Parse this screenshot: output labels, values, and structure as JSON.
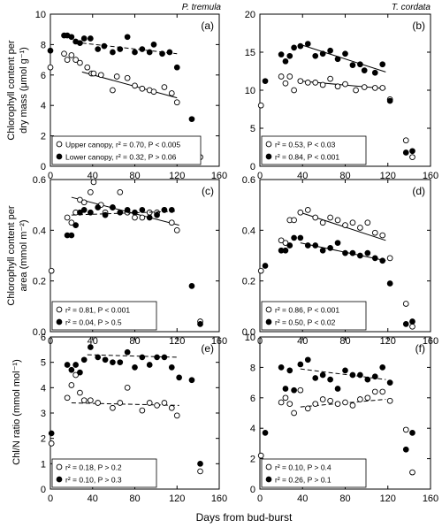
{
  "figure": {
    "xlabel": "Days from bud-burst",
    "row_ylabels": [
      [
        "Chlorophyll content per",
        "dry mass (μmol g⁻¹)"
      ],
      [
        "Chlorophyll content per",
        "area (mmol m⁻²)"
      ],
      [
        "Chl/N ratio (mmol mol⁻¹)"
      ]
    ],
    "column_titles": [
      "P. tremula",
      "T. cordata"
    ],
    "colors": {
      "ink": "#000000",
      "open_fill": "#ffffff",
      "background": "#ffffff"
    }
  },
  "chart_data": [
    {
      "type": "scatter",
      "panel": "(a)",
      "species": "P. tremula",
      "xlim": [
        0,
        160
      ],
      "ylim": [
        0,
        10
      ],
      "xticks": [
        0,
        40,
        80,
        120,
        160
      ],
      "yticks": [
        0,
        2,
        4,
        6,
        8,
        10
      ],
      "legend_position": "bottom-left",
      "series": [
        {
          "name": "Upper canopy",
          "marker": "open",
          "stat": ", r² = 0.70, P < 0.005",
          "x": [
            0,
            13,
            16,
            20,
            24,
            28,
            35,
            39,
            41,
            48,
            59,
            63,
            73,
            80,
            87,
            94,
            98,
            108,
            115,
            120,
            142
          ],
          "y": [
            6.5,
            7.4,
            7.0,
            7.3,
            7.0,
            6.8,
            6.5,
            6.1,
            6.1,
            6.0,
            5.0,
            5.9,
            5.8,
            5.3,
            5.1,
            5.0,
            4.9,
            5.2,
            4.8,
            4.2,
            0.6
          ],
          "trend": {
            "style": "solid",
            "x": [
              30,
              120
            ],
            "y": [
              6.2,
              4.5
            ]
          }
        },
        {
          "name": "Lower canopy",
          "marker": "filled",
          "stat": ", r² = 0.32, P > 0.06",
          "x": [
            0,
            13,
            16,
            20,
            24,
            28,
            32,
            38,
            45,
            51,
            59,
            66,
            73,
            80,
            87,
            94,
            98,
            106,
            113,
            120,
            134
          ],
          "y": [
            7.6,
            8.6,
            8.6,
            8.5,
            8.2,
            8.1,
            8.4,
            8.4,
            7.7,
            7.9,
            7.5,
            7.7,
            8.5,
            7.5,
            7.7,
            7.5,
            8.0,
            7.4,
            7.5,
            6.5,
            3.1
          ],
          "trend": {
            "style": "dashed",
            "x": [
              30,
              120
            ],
            "y": [
              8.1,
              7.4
            ]
          }
        }
      ]
    },
    {
      "type": "scatter",
      "panel": "(b)",
      "species": "T. cordata",
      "xlim": [
        0,
        160
      ],
      "ylim": [
        0,
        20
      ],
      "xticks": [
        0,
        40,
        80,
        120,
        160
      ],
      "yticks": [
        0,
        5,
        10,
        15,
        20
      ],
      "legend_position": "bottom-left",
      "series": [
        {
          "name": "",
          "marker": "open",
          "stat": "r² = 0.53, P < 0.03",
          "x": [
            1,
            20,
            24,
            28,
            32,
            38,
            45,
            52,
            59,
            66,
            73,
            80,
            90,
            98,
            108,
            115,
            122,
            137,
            143
          ],
          "y": [
            8.0,
            11.8,
            10.9,
            11.8,
            10.0,
            11.2,
            11.0,
            11.0,
            10.7,
            11.5,
            10.5,
            10.8,
            10.0,
            10.4,
            10.3,
            10.3,
            8.8,
            3.4,
            1.2
          ],
          "trend": {
            "style": "solid",
            "x": [
              38,
              118
            ],
            "y": [
              11.2,
              10.2
            ]
          }
        },
        {
          "name": "",
          "marker": "filled",
          "stat": "r² = 0.84, P < 0.001",
          "x": [
            5,
            20,
            24,
            28,
            32,
            38,
            45,
            52,
            59,
            66,
            73,
            80,
            87,
            94,
            98,
            108,
            115,
            122,
            137,
            143
          ],
          "y": [
            11.2,
            14.7,
            13.8,
            14.5,
            15.6,
            15.8,
            16.1,
            14.5,
            14.8,
            15.2,
            14.1,
            14.8,
            13.3,
            13.4,
            12.6,
            12.3,
            13.4,
            8.6,
            1.8,
            2.0
          ],
          "trend": {
            "style": "solid",
            "x": [
              38,
              118
            ],
            "y": [
              16.0,
              12.4
            ]
          }
        }
      ]
    },
    {
      "type": "scatter",
      "panel": "(c)",
      "species": "P. tremula",
      "xlim": [
        0,
        160
      ],
      "ylim": [
        0,
        0.6
      ],
      "xticks": [
        0,
        40,
        80,
        120,
        160
      ],
      "yticks": [
        0.0,
        0.2,
        0.4,
        0.6
      ],
      "legend_position": "bottom-left",
      "series": [
        {
          "name": "",
          "marker": "open",
          "stat": "r² = 0.81, P < 0.001",
          "x": [
            1,
            16,
            20,
            24,
            28,
            32,
            38,
            41,
            48,
            52,
            59,
            66,
            73,
            80,
            87,
            94,
            101,
            108,
            115,
            120,
            142
          ],
          "y": [
            0.24,
            0.45,
            0.43,
            0.47,
            0.52,
            0.51,
            0.55,
            0.59,
            0.5,
            0.47,
            0.49,
            0.55,
            0.47,
            0.45,
            0.45,
            0.47,
            0.47,
            0.48,
            0.43,
            0.4,
            0.04
          ],
          "trend": {
            "style": "solid",
            "x": [
              20,
              122
            ],
            "y": [
              0.53,
              0.42
            ]
          }
        },
        {
          "name": "",
          "marker": "filled",
          "stat": "r² = 0.04, P > 0.5",
          "x": [
            16,
            20,
            24,
            28,
            32,
            38,
            45,
            52,
            59,
            66,
            73,
            80,
            87,
            94,
            101,
            108,
            115,
            134,
            142
          ],
          "y": [
            0.38,
            0.38,
            0.42,
            0.47,
            0.48,
            0.47,
            0.49,
            0.46,
            0.49,
            0.47,
            0.48,
            0.47,
            0.48,
            0.45,
            0.46,
            0.48,
            0.48,
            0.18,
            0.03
          ],
          "trend": {
            "style": "dashed",
            "x": [
              20,
              120
            ],
            "y": [
              0.46,
              0.475
            ]
          }
        }
      ]
    },
    {
      "type": "scatter",
      "panel": "(d)",
      "species": "T. cordata",
      "xlim": [
        0,
        160
      ],
      "ylim": [
        0,
        0.6
      ],
      "xticks": [
        0,
        40,
        80,
        120,
        160
      ],
      "yticks": [
        0.0,
        0.2,
        0.4,
        0.6
      ],
      "legend_position": "bottom-left",
      "series": [
        {
          "name": "",
          "marker": "open",
          "stat": "r² = 0.86, P < 0.001",
          "x": [
            1,
            20,
            24,
            28,
            32,
            38,
            45,
            52,
            59,
            66,
            73,
            80,
            87,
            94,
            101,
            108,
            115,
            122,
            137,
            143
          ],
          "y": [
            0.24,
            0.36,
            0.35,
            0.44,
            0.44,
            0.47,
            0.48,
            0.45,
            0.43,
            0.45,
            0.44,
            0.42,
            0.43,
            0.41,
            0.43,
            0.39,
            0.38,
            0.29,
            0.11,
            0.02
          ],
          "trend": {
            "style": "solid",
            "x": [
              38,
              118
            ],
            "y": [
              0.47,
              0.36
            ]
          }
        },
        {
          "name": "",
          "marker": "filled",
          "stat": "r² = 0.50, P < 0.02",
          "x": [
            5,
            20,
            24,
            28,
            32,
            38,
            45,
            52,
            59,
            66,
            73,
            80,
            87,
            94,
            101,
            108,
            115,
            122,
            137,
            143
          ],
          "y": [
            0.26,
            0.32,
            0.32,
            0.34,
            0.37,
            0.37,
            0.34,
            0.34,
            0.32,
            0.33,
            0.35,
            0.31,
            0.31,
            0.3,
            0.31,
            0.29,
            0.28,
            0.19,
            0.03,
            0.04
          ],
          "trend": {
            "style": "solid",
            "x": [
              38,
              118
            ],
            "y": [
              0.35,
              0.28
            ]
          }
        }
      ]
    },
    {
      "type": "scatter",
      "panel": "(e)",
      "species": "P. tremula",
      "xlim": [
        0,
        160
      ],
      "ylim": [
        0,
        6
      ],
      "xticks": [
        0,
        40,
        80,
        120,
        160
      ],
      "yticks": [
        0,
        1,
        2,
        3,
        4,
        5,
        6
      ],
      "legend_position": "bottom-left",
      "series": [
        {
          "name": "",
          "marker": "open",
          "stat": "r² = 0.18, P > 0.2",
          "x": [
            1,
            16,
            20,
            24,
            28,
            32,
            38,
            45,
            59,
            66,
            73,
            87,
            94,
            101,
            108,
            115,
            120,
            142
          ],
          "y": [
            1.8,
            3.6,
            4.1,
            4.5,
            3.8,
            3.5,
            3.5,
            3.4,
            3.2,
            3.4,
            4.0,
            3.1,
            3.4,
            3.3,
            3.4,
            3.2,
            2.9,
            0.7
          ],
          "trend": {
            "style": "dashed",
            "x": [
              20,
              122
            ],
            "y": [
              3.4,
              3.3
            ]
          }
        },
        {
          "name": "",
          "marker": "filled",
          "stat": "r² = 0.10, P > 0.3",
          "x": [
            1,
            16,
            20,
            24,
            28,
            32,
            38,
            45,
            52,
            59,
            66,
            73,
            80,
            87,
            94,
            101,
            108,
            115,
            122,
            134,
            142
          ],
          "y": [
            2.2,
            4.9,
            4.7,
            4.9,
            4.6,
            5.1,
            5.6,
            5.2,
            5.1,
            5.0,
            5.0,
            5.4,
            4.8,
            5.2,
            4.9,
            5.2,
            5.2,
            4.8,
            4.4,
            4.3,
            1.0
          ],
          "trend": {
            "style": "dashed",
            "x": [
              35,
              120
            ],
            "y": [
              5.3,
              5.2
            ]
          }
        }
      ]
    },
    {
      "type": "scatter",
      "panel": "(f)",
      "species": "T. cordata",
      "xlim": [
        0,
        160
      ],
      "ylim": [
        0,
        10
      ],
      "xticks": [
        0,
        40,
        80,
        120,
        160
      ],
      "yticks": [
        0,
        2,
        4,
        6,
        8,
        10
      ],
      "legend_position": "bottom-left",
      "series": [
        {
          "name": "",
          "marker": "open",
          "stat": "r² = 0.10, P > 0.4",
          "x": [
            1,
            20,
            24,
            28,
            32,
            38,
            45,
            52,
            59,
            66,
            73,
            80,
            87,
            94,
            101,
            108,
            115,
            122,
            137,
            143
          ],
          "y": [
            2.2,
            5.7,
            6.0,
            5.6,
            5.0,
            6.5,
            5.3,
            5.6,
            5.9,
            5.8,
            5.6,
            5.7,
            5.5,
            5.9,
            6.0,
            6.4,
            6.4,
            5.8,
            3.9,
            1.1
          ],
          "trend": {
            "style": "dashed",
            "x": [
              38,
              118
            ],
            "y": [
              5.4,
              5.9
            ]
          }
        },
        {
          "name": "",
          "marker": "filled",
          "stat": "r² = 0.26, P > 0.1",
          "x": [
            5,
            20,
            24,
            28,
            32,
            38,
            45,
            52,
            59,
            66,
            73,
            80,
            87,
            94,
            101,
            108,
            115,
            122,
            137,
            143
          ],
          "y": [
            3.7,
            8.0,
            6.6,
            7.8,
            6.5,
            8.2,
            8.5,
            7.3,
            7.5,
            7.2,
            6.6,
            7.8,
            7.5,
            7.5,
            7.2,
            7.4,
            8.0,
            7.0,
            2.6,
            3.7
          ],
          "trend": {
            "style": "dashed",
            "x": [
              38,
              118
            ],
            "y": [
              7.9,
              7.2
            ]
          }
        }
      ]
    }
  ]
}
